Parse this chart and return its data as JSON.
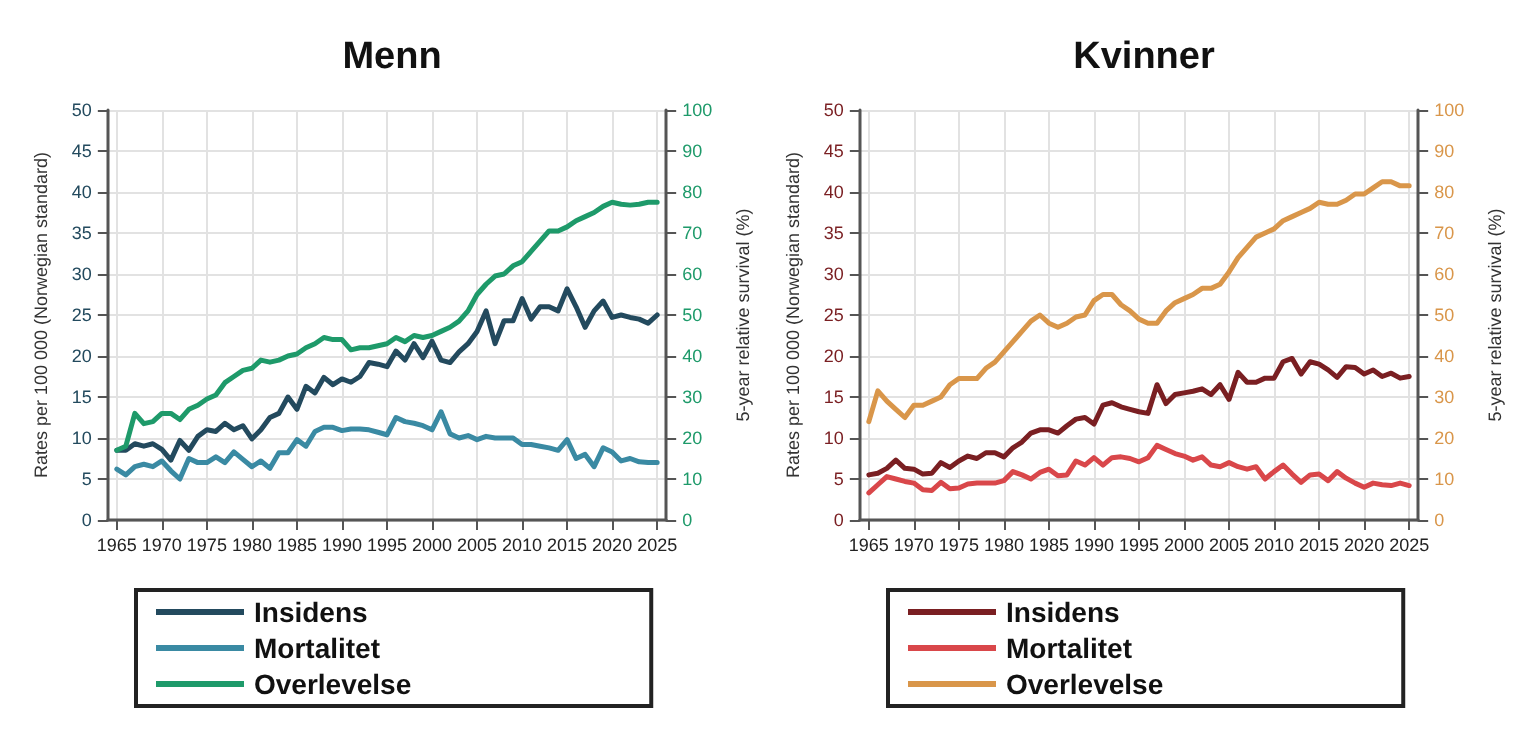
{
  "chart_data": [
    {
      "type": "line",
      "title": "Menn",
      "ylabel": "Rates per 100 000 (Norwegian standard)",
      "y2label": "5-year relative survival (%)",
      "x": [
        1965,
        1966,
        1967,
        1968,
        1969,
        1970,
        1971,
        1972,
        1973,
        1974,
        1975,
        1976,
        1977,
        1978,
        1979,
        1980,
        1981,
        1982,
        1983,
        1984,
        1985,
        1986,
        1987,
        1988,
        1989,
        1990,
        1991,
        1992,
        1993,
        1994,
        1995,
        1996,
        1997,
        1998,
        1999,
        2000,
        2001,
        2002,
        2003,
        2004,
        2005,
        2006,
        2007,
        2008,
        2009,
        2010,
        2011,
        2012,
        2013,
        2014,
        2015,
        2016,
        2017,
        2018,
        2019,
        2020,
        2021,
        2022,
        2023,
        2024,
        2025
      ],
      "series": [
        {
          "name": "Insidens",
          "color": "#234a5e",
          "values": [
            8.5,
            8.5,
            9.3,
            9.0,
            9.3,
            8.6,
            7.3,
            9.7,
            8.5,
            10.2,
            11,
            10.8,
            11.8,
            11,
            11.5,
            9.9,
            11,
            12.5,
            13,
            15,
            13.5,
            16.3,
            15.5,
            17.4,
            16.5,
            17.2,
            16.8,
            17.5,
            19.2,
            19,
            18.7,
            20.6,
            19.5,
            21.5,
            19.8,
            21.8,
            19.5,
            19.2,
            20.5,
            21.5,
            23,
            25.5,
            21.5,
            24.3,
            24.3,
            27,
            24.5,
            26,
            26,
            25.5,
            28.2,
            26,
            23.5,
            25.5,
            26.7,
            24.7,
            25,
            24.7,
            24.5,
            24,
            25
          ]
        },
        {
          "name": "Mortalitet",
          "color": "#3a8aa3",
          "values": [
            6.2,
            5.5,
            6.5,
            6.8,
            6.5,
            7.2,
            6,
            5,
            7.5,
            7,
            7,
            7.7,
            7,
            8.3,
            7.4,
            6.5,
            7.2,
            6.3,
            8.2,
            8.2,
            9.8,
            9,
            10.8,
            11.3,
            11.3,
            10.9,
            11.1,
            11.1,
            11,
            10.7,
            10.4,
            12.5,
            12,
            11.8,
            11.5,
            11,
            13.2,
            10.5,
            10,
            10.3,
            9.8,
            10.2,
            10,
            10,
            10,
            9.2,
            9.2,
            9,
            8.8,
            8.5,
            9.8,
            7.5,
            8,
            6.5,
            8.8,
            8.3,
            7.2,
            7.5,
            7.1,
            7,
            7
          ]
        },
        {
          "name": "Overlevelse",
          "color": "#1e9a6a",
          "axis": "y2",
          "values": [
            17,
            18,
            26,
            23.5,
            24,
            26,
            26,
            24.5,
            27,
            28,
            29.5,
            30.5,
            33.5,
            35,
            36.5,
            37,
            39,
            38.5,
            39,
            40,
            40.5,
            42,
            43,
            44.5,
            44,
            44,
            41.5,
            42,
            42,
            42.5,
            43,
            44.5,
            43.5,
            45,
            44.5,
            45,
            46,
            47,
            48.5,
            51,
            55,
            57.5,
            59.5,
            60,
            62,
            63,
            65.5,
            68,
            70.5,
            70.5,
            71.5,
            73,
            74,
            75,
            76.5,
            77.5,
            77,
            76.8,
            77,
            77.5,
            77.5
          ]
        }
      ],
      "xlim": [
        1964,
        2026
      ],
      "xticks": [
        1965,
        1970,
        1975,
        1980,
        1985,
        1990,
        1995,
        2000,
        2005,
        2010,
        2015,
        2020,
        2025
      ],
      "ylim": [
        0,
        50
      ],
      "yticks": [
        0,
        5,
        10,
        15,
        20,
        25,
        30,
        35,
        40,
        45,
        50
      ],
      "y2lim": [
        0,
        100
      ],
      "y2ticks": [
        0,
        10,
        20,
        30,
        40,
        50,
        60,
        70,
        80,
        90,
        100
      ],
      "grid": true,
      "legend": "bottom",
      "marker": "none",
      "line_style": "solid"
    },
    {
      "type": "line",
      "title": "Kvinner",
      "ylabel": "Rates per 100 000 (Norwegian standard)",
      "y2label": "5-year relative survival (%)",
      "x": [
        1965,
        1966,
        1967,
        1968,
        1969,
        1970,
        1971,
        1972,
        1973,
        1974,
        1975,
        1976,
        1977,
        1978,
        1979,
        1980,
        1981,
        1982,
        1983,
        1984,
        1985,
        1986,
        1987,
        1988,
        1989,
        1990,
        1991,
        1992,
        1993,
        1994,
        1995,
        1996,
        1997,
        1998,
        1999,
        2000,
        2001,
        2002,
        2003,
        2004,
        2005,
        2006,
        2007,
        2008,
        2009,
        2010,
        2011,
        2012,
        2013,
        2014,
        2015,
        2016,
        2017,
        2018,
        2019,
        2020,
        2021,
        2022,
        2023,
        2024,
        2025
      ],
      "series": [
        {
          "name": "Insidens",
          "color": "#7a1f22",
          "values": [
            5.5,
            5.7,
            6.3,
            7.3,
            6.3,
            6.2,
            5.6,
            5.7,
            7,
            6.4,
            7.2,
            7.8,
            7.5,
            8.2,
            8.2,
            7.7,
            8.8,
            9.5,
            10.6,
            11,
            11,
            10.6,
            11.5,
            12.3,
            12.5,
            11.7,
            14,
            14.3,
            13.8,
            13.5,
            13.2,
            13,
            16.5,
            14.2,
            15.3,
            15.5,
            15.7,
            16,
            15.3,
            16.5,
            14.7,
            18,
            16.8,
            16.8,
            17.3,
            17.3,
            19.3,
            19.7,
            17.8,
            19.3,
            19,
            18.3,
            17.4,
            18.7,
            18.6,
            17.8,
            18.3,
            17.5,
            17.9,
            17.3,
            17.5
          ]
        },
        {
          "name": "Mortalitet",
          "color": "#d9474a",
          "values": [
            3.3,
            4.3,
            5.3,
            5,
            4.7,
            4.5,
            3.7,
            3.6,
            4.6,
            3.8,
            3.9,
            4.4,
            4.5,
            4.5,
            4.5,
            4.8,
            5.9,
            5.5,
            5,
            5.8,
            6.2,
            5.4,
            5.5,
            7.2,
            6.7,
            7.6,
            6.7,
            7.6,
            7.7,
            7.5,
            7.1,
            7.6,
            9.1,
            8.6,
            8.1,
            7.8,
            7.3,
            7.7,
            6.7,
            6.5,
            7,
            6.5,
            6.2,
            6.5,
            5,
            5.9,
            6.7,
            5.6,
            4.6,
            5.5,
            5.6,
            4.8,
            5.9,
            5.1,
            4.5,
            4,
            4.5,
            4.3,
            4.2,
            4.5,
            4.2
          ]
        },
        {
          "name": "Overlevelse",
          "color": "#d9964a",
          "axis": "y2",
          "values": [
            24,
            31.5,
            29,
            27,
            25,
            28,
            28,
            29,
            30,
            33,
            34.5,
            34.5,
            34.5,
            37,
            38.5,
            41,
            43.5,
            46,
            48.5,
            50,
            48,
            47,
            48,
            49.5,
            50,
            53.5,
            55,
            55,
            52.5,
            51,
            49,
            48,
            48,
            51,
            53,
            54,
            55,
            56.5,
            56.5,
            57.5,
            60.5,
            64,
            66.5,
            69,
            70,
            71,
            73,
            74,
            75,
            76,
            77.5,
            77,
            77,
            78,
            79.5,
            79.5,
            81,
            82.5,
            82.5,
            81.5,
            81.5
          ]
        }
      ],
      "xlim": [
        1964,
        2026
      ],
      "xticks": [
        1965,
        1970,
        1975,
        1980,
        1985,
        1990,
        1995,
        2000,
        2005,
        2010,
        2015,
        2020,
        2025
      ],
      "ylim": [
        0,
        50
      ],
      "yticks": [
        0,
        5,
        10,
        15,
        20,
        25,
        30,
        35,
        40,
        45,
        50
      ],
      "y2lim": [
        0,
        100
      ],
      "y2ticks": [
        0,
        10,
        20,
        30,
        40,
        50,
        60,
        70,
        80,
        90,
        100
      ],
      "grid": true,
      "legend": "bottom",
      "marker": "none",
      "line_style": "solid"
    }
  ]
}
